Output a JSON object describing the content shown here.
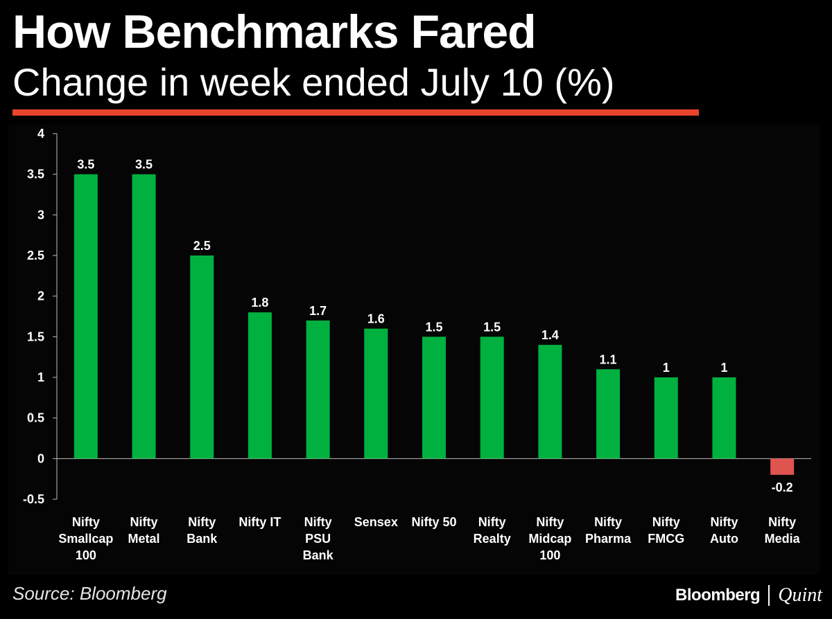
{
  "header": {
    "title": "How Benchmarks Fared",
    "subtitle": "Change in week ended July 10 (%)"
  },
  "footer": {
    "source": "Source: Bloomberg",
    "brand_primary": "Bloomberg",
    "brand_secondary": "Quint"
  },
  "colors": {
    "positive": "#00b140",
    "negative": "#e05450",
    "rule": "#e8452c",
    "background": "#000000"
  },
  "chart_data": {
    "type": "bar",
    "title": "How Benchmarks Fared",
    "subtitle": "Change in week ended July 10 (%)",
    "xlabel": "",
    "ylabel": "",
    "ylim": [
      -0.5,
      4
    ],
    "yticks": [
      "4",
      "3.5",
      "3",
      "2.5",
      "2",
      "1.5",
      "1",
      "0.5",
      "0",
      "-0.5"
    ],
    "ytick_values": [
      4,
      3.5,
      3,
      2.5,
      2,
      1.5,
      1,
      0.5,
      0,
      -0.5
    ],
    "grid": false,
    "legend": "none",
    "categories": [
      "Nifty Smallcap 100",
      "Nifty Metal",
      "Nifty Bank",
      "Nifty IT",
      "Nifty PSU Bank",
      "Sensex",
      "Nifty 50",
      "Nifty Realty",
      "Nifty Midcap 100",
      "Nifty Pharma",
      "Nifty FMCG",
      "Nifty Auto",
      "Nifty Media"
    ],
    "category_lines": [
      [
        "Nifty",
        "Smallcap",
        "100"
      ],
      [
        "Nifty",
        "Metal"
      ],
      [
        "Nifty",
        "Bank"
      ],
      [
        "Nifty IT"
      ],
      [
        "Nifty",
        "PSU",
        "Bank"
      ],
      [
        "Sensex"
      ],
      [
        "Nifty 50"
      ],
      [
        "Nifty",
        "Realty"
      ],
      [
        "Nifty",
        "Midcap",
        "100"
      ],
      [
        "Nifty",
        "Pharma"
      ],
      [
        "Nifty",
        "FMCG"
      ],
      [
        "Nifty",
        "Auto"
      ],
      [
        "Nifty",
        "Media"
      ]
    ],
    "values": [
      3.5,
      3.5,
      2.5,
      1.8,
      1.7,
      1.6,
      1.5,
      1.5,
      1.4,
      1.1,
      1,
      1,
      -0.2
    ],
    "value_labels": [
      "3.5",
      "3.5",
      "2.5",
      "1.8",
      "1.7",
      "1.6",
      "1.5",
      "1.5",
      "1.4",
      "1.1",
      "1",
      "1",
      "-0.2"
    ]
  }
}
